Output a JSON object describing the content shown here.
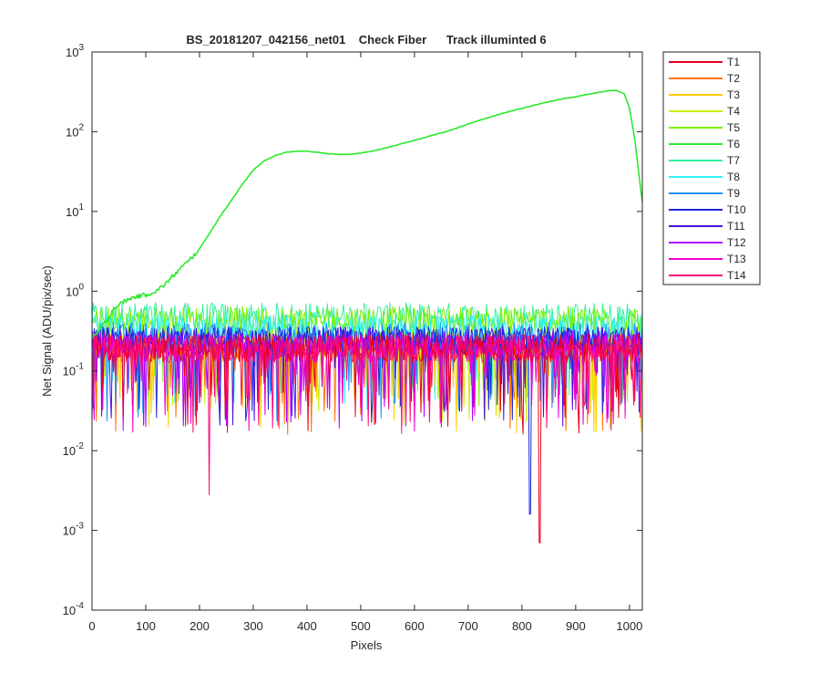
{
  "chart_data": {
    "type": "line",
    "title": "BS_20181207_042156_net01    Check Fiber      Track illuminted 6",
    "xlabel": "Pixels",
    "ylabel": "Net Signal (ADU/pix/sec)",
    "xlim": [
      0,
      1024
    ],
    "ylim": [
      0.0001,
      1000
    ],
    "yscale": "log",
    "xticks": [
      "0",
      "100",
      "200",
      "300",
      "400",
      "500",
      "600",
      "700",
      "800",
      "900",
      "1000"
    ],
    "yticks": [
      {
        "base": "10",
        "exp": "-4"
      },
      {
        "base": "10",
        "exp": "-3"
      },
      {
        "base": "10",
        "exp": "-2"
      },
      {
        "base": "10",
        "exp": "-1"
      },
      {
        "base": "10",
        "exp": "0"
      },
      {
        "base": "10",
        "exp": "1"
      },
      {
        "base": "10",
        "exp": "2"
      },
      {
        "base": "10",
        "exp": "3"
      }
    ],
    "grid": false,
    "legend_position": "outside-right",
    "illuminated_series": "T6",
    "illuminated_profile": {
      "x": [
        0,
        30,
        40,
        60,
        80,
        100,
        120,
        140,
        160,
        180,
        200,
        220,
        240,
        260,
        280,
        300,
        320,
        340,
        360,
        380,
        400,
        420,
        440,
        460,
        480,
        500,
        520,
        540,
        560,
        580,
        600,
        620,
        640,
        660,
        680,
        700,
        720,
        740,
        760,
        780,
        800,
        820,
        840,
        860,
        880,
        900,
        920,
        940,
        960,
        975,
        990,
        1000,
        1010,
        1018,
        1024
      ],
      "y": [
        0.25,
        0.45,
        0.6,
        0.75,
        0.85,
        0.9,
        1.0,
        1.3,
        1.8,
        2.4,
        3.4,
        5.5,
        9,
        14,
        22,
        33,
        43,
        50,
        55,
        57,
        57,
        55,
        53,
        52,
        52,
        54,
        57,
        61,
        66,
        72,
        78,
        85,
        93,
        101,
        112,
        125,
        138,
        152,
        167,
        182,
        197,
        213,
        230,
        245,
        262,
        275,
        292,
        310,
        325,
        330,
        300,
        200,
        80,
        28,
        13
      ]
    },
    "noise_floor": {
      "T1": 0.2,
      "T2": 0.2,
      "T3": 0.21,
      "T4": 0.23,
      "T5": 0.45,
      "T7": 0.5,
      "T8": 0.35,
      "T9": 0.28,
      "T10": 0.25,
      "T11": 0.25,
      "T12": 0.22,
      "T13": 0.2,
      "T14": 0.2
    },
    "annotated_minima": [
      {
        "series": "T14",
        "x": 218,
        "y": 0.0028
      },
      {
        "series": "T10",
        "x": 815,
        "y": 0.0016
      },
      {
        "series": "T1",
        "x": 833,
        "y": 0.0007
      }
    ],
    "series": [
      {
        "name": "T1",
        "color": "#e6001a"
      },
      {
        "name": "T2",
        "color": "#ff7300"
      },
      {
        "name": "T3",
        "color": "#ffcc00"
      },
      {
        "name": "T4",
        "color": "#c8f000"
      },
      {
        "name": "T5",
        "color": "#7cf000"
      },
      {
        "name": "T6",
        "color": "#2ee830"
      },
      {
        "name": "T7",
        "color": "#33f0a0"
      },
      {
        "name": "T8",
        "color": "#33f0f0"
      },
      {
        "name": "T9",
        "color": "#1a90ff"
      },
      {
        "name": "T10",
        "color": "#1a2ad8"
      },
      {
        "name": "T11",
        "color": "#4a10e8"
      },
      {
        "name": "T12",
        "color": "#b400ff"
      },
      {
        "name": "T13",
        "color": "#f000c8"
      },
      {
        "name": "T14",
        "color": "#ff0a78"
      }
    ]
  }
}
